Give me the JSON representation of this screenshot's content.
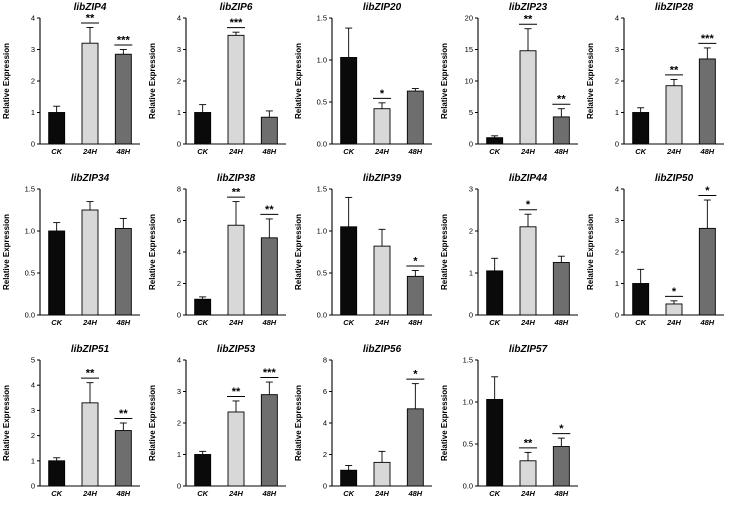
{
  "figure": {
    "description": "Grid of 14 bar charts of relative gene expression (libZIP genes) at CK, 24H, 48H",
    "ylabel": "Relative Expression"
  },
  "style": {
    "bar_colors": [
      "#0a0a0a",
      "#d8d8d8",
      "#6e6e6e"
    ],
    "bar_stroke": "#000000",
    "axis_color": "#000000"
  },
  "chart_data": [
    {
      "type": "bar",
      "title": "libZIP4",
      "categories": [
        "CK",
        "24H",
        "48H"
      ],
      "ylabel": "Relative Expression",
      "ylim": [
        0,
        4
      ],
      "ytick_step": 1,
      "values": [
        1.0,
        3.2,
        2.85
      ],
      "errors": [
        0.2,
        0.5,
        0.15
      ],
      "significance": [
        "",
        "**",
        "***"
      ]
    },
    {
      "type": "bar",
      "title": "libZIP6",
      "categories": [
        "CK",
        "24H",
        "48H"
      ],
      "ylabel": "Relative Expression",
      "ylim": [
        0,
        4
      ],
      "ytick_step": 1,
      "values": [
        1.0,
        3.45,
        0.85
      ],
      "errors": [
        0.25,
        0.1,
        0.2
      ],
      "significance": [
        "",
        "***",
        ""
      ]
    },
    {
      "type": "bar",
      "title": "libZIP20",
      "categories": [
        "CK",
        "24H",
        "48H"
      ],
      "ylabel": "Relative Expression",
      "ylim": [
        0,
        1.5
      ],
      "ytick_step": 0.5,
      "values": [
        1.03,
        0.42,
        0.63
      ],
      "errors": [
        0.35,
        0.07,
        0.03
      ],
      "significance": [
        "",
        "*",
        ""
      ]
    },
    {
      "type": "bar",
      "title": "libZIP23",
      "categories": [
        "CK",
        "24H",
        "48H"
      ],
      "ylabel": "Relative Expression",
      "ylim": [
        0,
        20
      ],
      "ytick_step": 5,
      "values": [
        1.0,
        14.8,
        4.3
      ],
      "errors": [
        0.3,
        3.5,
        1.3
      ],
      "significance": [
        "",
        "**",
        "**"
      ]
    },
    {
      "type": "bar",
      "title": "libZIP28",
      "categories": [
        "CK",
        "24H",
        "48H"
      ],
      "ylabel": "Relative Expression",
      "ylim": [
        0,
        4
      ],
      "ytick_step": 1,
      "values": [
        1.0,
        1.85,
        2.7
      ],
      "errors": [
        0.15,
        0.2,
        0.35
      ],
      "significance": [
        "",
        "**",
        "***"
      ]
    },
    {
      "type": "bar",
      "title": "libZIP34",
      "categories": [
        "CK",
        "24H",
        "48H"
      ],
      "ylabel": "Relative Expression",
      "ylim": [
        0,
        1.5
      ],
      "ytick_step": 0.5,
      "values": [
        1.0,
        1.25,
        1.03
      ],
      "errors": [
        0.1,
        0.1,
        0.12
      ],
      "significance": [
        "",
        "",
        ""
      ]
    },
    {
      "type": "bar",
      "title": "libZIP38",
      "categories": [
        "CK",
        "24H",
        "48H"
      ],
      "ylabel": "Relative Expression",
      "ylim": [
        0,
        8
      ],
      "ytick_step": 2,
      "values": [
        1.0,
        5.7,
        4.9
      ],
      "errors": [
        0.15,
        1.5,
        1.2
      ],
      "significance": [
        "",
        "**",
        "**"
      ]
    },
    {
      "type": "bar",
      "title": "libZIP39",
      "categories": [
        "CK",
        "24H",
        "48H"
      ],
      "ylabel": "Relative Expression",
      "ylim": [
        0,
        1.5
      ],
      "ytick_step": 0.5,
      "values": [
        1.05,
        0.82,
        0.46
      ],
      "errors": [
        0.35,
        0.2,
        0.07
      ],
      "significance": [
        "",
        "",
        "*"
      ]
    },
    {
      "type": "bar",
      "title": "libZIP44",
      "categories": [
        "CK",
        "24H",
        "48H"
      ],
      "ylabel": "Relative Expression",
      "ylim": [
        0,
        3
      ],
      "ytick_step": 1,
      "values": [
        1.05,
        2.1,
        1.25
      ],
      "errors": [
        0.3,
        0.3,
        0.15
      ],
      "significance": [
        "",
        "*",
        ""
      ]
    },
    {
      "type": "bar",
      "title": "libZIP50",
      "categories": [
        "CK",
        "24H",
        "48H"
      ],
      "ylabel": "Relative Expression",
      "ylim": [
        0,
        4
      ],
      "ytick_step": 1,
      "values": [
        1.0,
        0.35,
        2.75
      ],
      "errors": [
        0.45,
        0.1,
        0.9
      ],
      "significance": [
        "",
        "*",
        "*"
      ]
    },
    {
      "type": "bar",
      "title": "libZIP51",
      "categories": [
        "CK",
        "24H",
        "48H"
      ],
      "ylabel": "Relative Expression",
      "ylim": [
        0,
        5
      ],
      "ytick_step": 1,
      "values": [
        1.0,
        3.3,
        2.2
      ],
      "errors": [
        0.12,
        0.8,
        0.3
      ],
      "significance": [
        "",
        "**",
        "**"
      ]
    },
    {
      "type": "bar",
      "title": "libZIP53",
      "categories": [
        "CK",
        "24H",
        "48H"
      ],
      "ylabel": "Relative Expression",
      "ylim": [
        0,
        4
      ],
      "ytick_step": 1,
      "values": [
        1.0,
        2.35,
        2.9
      ],
      "errors": [
        0.1,
        0.35,
        0.4
      ],
      "significance": [
        "",
        "**",
        "***"
      ]
    },
    {
      "type": "bar",
      "title": "libZIP56",
      "categories": [
        "CK",
        "24H",
        "48H"
      ],
      "ylabel": "Relative Expression",
      "ylim": [
        0,
        8
      ],
      "ytick_step": 2,
      "values": [
        1.0,
        1.5,
        4.9
      ],
      "errors": [
        0.3,
        0.7,
        1.6
      ],
      "significance": [
        "",
        "",
        "*"
      ]
    },
    {
      "type": "bar",
      "title": "libZIP57",
      "categories": [
        "CK",
        "24H",
        "48H"
      ],
      "ylabel": "Relative Expression",
      "ylim": [
        0,
        1.5
      ],
      "ytick_step": 0.5,
      "values": [
        1.03,
        0.3,
        0.47
      ],
      "errors": [
        0.27,
        0.1,
        0.1
      ],
      "significance": [
        "",
        "**",
        "*"
      ]
    }
  ]
}
